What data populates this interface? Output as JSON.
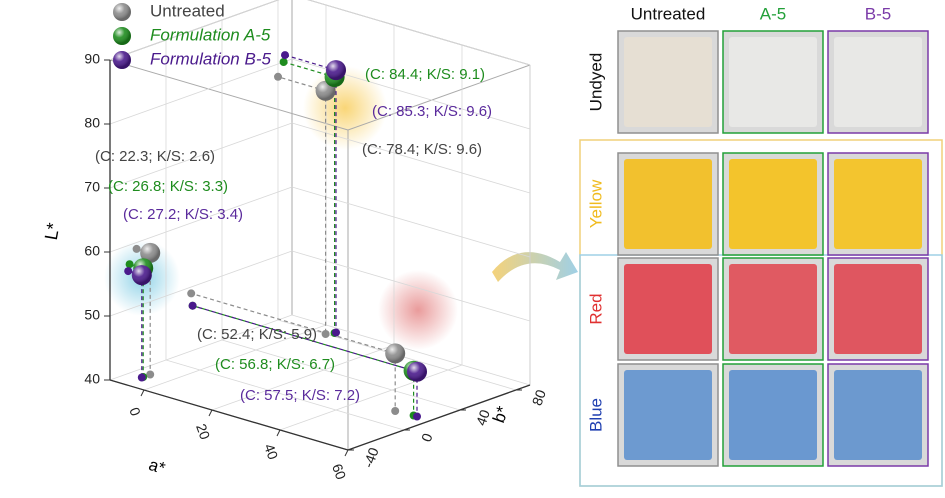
{
  "chart_data": {
    "type": "scatter3d",
    "xlabel": "a*",
    "ylabel": "b*",
    "zlabel": "L*",
    "xlim": [
      -10,
      60
    ],
    "ylim": [
      -40,
      90
    ],
    "zlim": [
      40,
      90
    ],
    "xticks": [
      0,
      20,
      40,
      60
    ],
    "yticks": [
      -40,
      0,
      40,
      80
    ],
    "zticks": [
      40,
      50,
      60,
      70,
      80,
      90
    ],
    "grid": true,
    "legend": "top-left",
    "series": [
      {
        "name": "Untreated",
        "color": "#8c8c8c",
        "x": [
          4,
          50,
          -6
        ],
        "y": [
          80,
          18,
          -21
        ],
        "z": [
          78,
          49,
          59
        ]
      },
      {
        "name": "Formulation A-5",
        "color": "#1e8c1e",
        "x": [
          5,
          55,
          -6
        ],
        "y": [
          84,
          19,
          -26
        ],
        "z": [
          80,
          47,
          57
        ]
      },
      {
        "name": "Formulation B-5",
        "color": "#4a1a8c",
        "x": [
          5,
          56,
          -6
        ],
        "y": [
          85,
          19,
          -27
        ],
        "z": [
          81,
          47,
          56
        ]
      }
    ],
    "annotations": [
      {
        "text": "(C: 84.4; K/S: 9.1)",
        "color": "#1e8c1e"
      },
      {
        "text": "(C: 85.3; K/S: 9.6)",
        "color": "#5a2a9c"
      },
      {
        "text": "(C: 78.4; K/S: 9.6)",
        "color": "#444444"
      },
      {
        "text": "(C: 22.3; K/S: 2.6)",
        "color": "#444444"
      },
      {
        "text": "(C: 26.8; K/S: 3.3)",
        "color": "#1e8c1e"
      },
      {
        "text": "(C: 27.2; K/S: 3.4)",
        "color": "#5a2a9c"
      },
      {
        "text": "(C: 52.4; K/S: 5.9)",
        "color": "#444444"
      },
      {
        "text": "(C: 56.8; K/S: 6.7)",
        "color": "#1e8c1e"
      },
      {
        "text": "(C: 57.5; K/S: 7.2)",
        "color": "#5a2a9c"
      }
    ]
  },
  "swatch_panel": {
    "columns": [
      {
        "label": "Untreated",
        "color": "#111111"
      },
      {
        "label": "A-5",
        "color": "#22a038"
      },
      {
        "label": "B-5",
        "color": "#7a3aa8"
      }
    ],
    "rows": [
      {
        "label": "Undyed",
        "color": "#111111",
        "swatches": [
          "#e6dfd3",
          "#e8e8e6",
          "#e8e8e6"
        ]
      },
      {
        "label": "Yellow",
        "color": "#f0bb1e",
        "swatches": [
          "#f2c12e",
          "#f3c42c",
          "#f3c52f"
        ]
      },
      {
        "label": "Red",
        "color": "#e03030",
        "swatches": [
          "#e0505a",
          "#e05a62",
          "#df5660"
        ]
      },
      {
        "label": "Blue",
        "color": "#1f3fb0",
        "swatches": [
          "#6d9ad0",
          "#6a98d0",
          "#6c99cf"
        ]
      }
    ]
  }
}
